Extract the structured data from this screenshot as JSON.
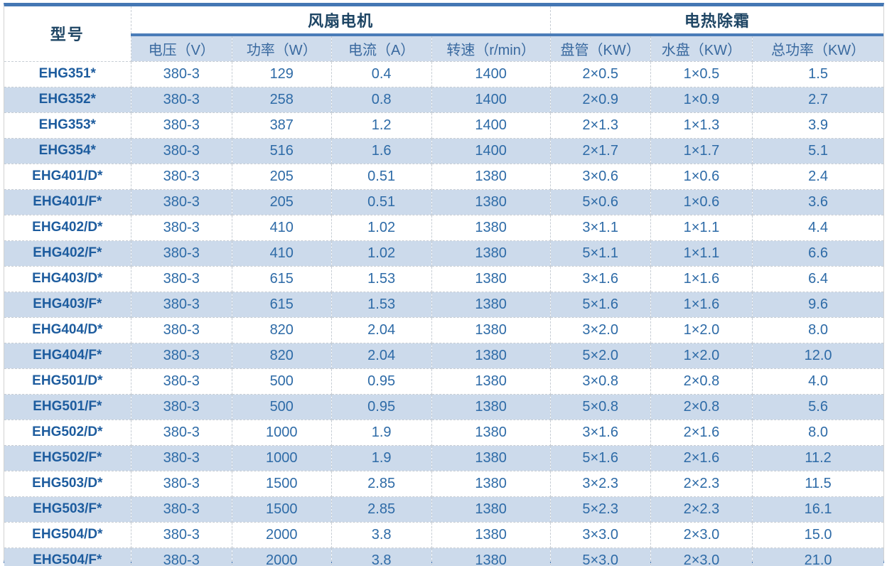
{
  "table": {
    "model_header": "型号",
    "groups": [
      {
        "label": "风扇电机",
        "columns": [
          "电压（V）",
          "功率（W）",
          "电流（A）",
          "转速（r/min）"
        ]
      },
      {
        "label": "电热除霜",
        "columns": [
          "盘管（KW）",
          "水盘（KW）",
          "总功率（KW）"
        ]
      }
    ],
    "rows": [
      [
        "EHG351*",
        "380-3",
        "129",
        "0.4",
        "1400",
        "2×0.5",
        "1×0.5",
        "1.5"
      ],
      [
        "EHG352*",
        "380-3",
        "258",
        "0.8",
        "1400",
        "2×0.9",
        "1×0.9",
        "2.7"
      ],
      [
        "EHG353*",
        "380-3",
        "387",
        "1.2",
        "1400",
        "2×1.3",
        "1×1.3",
        "3.9"
      ],
      [
        "EHG354*",
        "380-3",
        "516",
        "1.6",
        "1400",
        "2×1.7",
        "1×1.7",
        "5.1"
      ],
      [
        "EHG401/D*",
        "380-3",
        "205",
        "0.51",
        "1380",
        "3×0.6",
        "1×0.6",
        "2.4"
      ],
      [
        "EHG401/F*",
        "380-3",
        "205",
        "0.51",
        "1380",
        "5×0.6",
        "1×0.6",
        "3.6"
      ],
      [
        "EHG402/D*",
        "380-3",
        "410",
        "1.02",
        "1380",
        "3×1.1",
        "1×1.1",
        "4.4"
      ],
      [
        "EHG402/F*",
        "380-3",
        "410",
        "1.02",
        "1380",
        "5×1.1",
        "1×1.1",
        "6.6"
      ],
      [
        "EHG403/D*",
        "380-3",
        "615",
        "1.53",
        "1380",
        "3×1.6",
        "1×1.6",
        "6.4"
      ],
      [
        "EHG403/F*",
        "380-3",
        "615",
        "1.53",
        "1380",
        "5×1.6",
        "1×1.6",
        "9.6"
      ],
      [
        "EHG404/D*",
        "380-3",
        "820",
        "2.04",
        "1380",
        "3×2.0",
        "1×2.0",
        "8.0"
      ],
      [
        "EHG404/F*",
        "380-3",
        "820",
        "2.04",
        "1380",
        "5×2.0",
        "1×2.0",
        "12.0"
      ],
      [
        "EHG501/D*",
        "380-3",
        "500",
        "0.95",
        "1380",
        "3×0.8",
        "2×0.8",
        "4.0"
      ],
      [
        "EHG501/F*",
        "380-3",
        "500",
        "0.95",
        "1380",
        "5×0.8",
        "2×0.8",
        "5.6"
      ],
      [
        "EHG502/D*",
        "380-3",
        "1000",
        "1.9",
        "1380",
        "3×1.6",
        "2×1.6",
        "8.0"
      ],
      [
        "EHG502/F*",
        "380-3",
        "1000",
        "1.9",
        "1380",
        "5×1.6",
        "2×1.6",
        "11.2"
      ],
      [
        "EHG503/D*",
        "380-3",
        "1500",
        "2.85",
        "1380",
        "3×2.3",
        "2×2.3",
        "11.5"
      ],
      [
        "EHG503/F*",
        "380-3",
        "1500",
        "2.85",
        "1380",
        "5×2.3",
        "2×2.3",
        "16.1"
      ],
      [
        "EHG504/D*",
        "380-3",
        "2000",
        "3.8",
        "1380",
        "3×3.0",
        "2×3.0",
        "15.0"
      ],
      [
        "EHG504/F*",
        "380-3",
        "2000",
        "3.8",
        "1380",
        "5×3.0",
        "2×3.0",
        "21.0"
      ]
    ]
  },
  "colors": {
    "frame_blue": "#4477b4",
    "subheader_bg": "#cfdcec",
    "stripe_bg": "#ccdaeb",
    "header_text": "#1e4564",
    "subheader_text": "#39699f",
    "data_text": "#2e6ba7",
    "model_text": "#1d5c9e",
    "gridline": "#c7cdd4"
  },
  "chart_data": {
    "type": "table",
    "title": "",
    "columns": [
      "型号",
      "电压（V）",
      "功率（W）",
      "电流（A）",
      "转速（r/min）",
      "盘管（KW）",
      "水盘（KW）",
      "总功率（KW）"
    ],
    "column_groups": [
      {
        "label": "风扇电机",
        "span": [
          "电压（V）",
          "功率（W）",
          "电流（A）",
          "转速（r/min）"
        ]
      },
      {
        "label": "电热除霜",
        "span": [
          "盘管（KW）",
          "水盘（KW）",
          "总功率（KW）"
        ]
      }
    ]
  }
}
